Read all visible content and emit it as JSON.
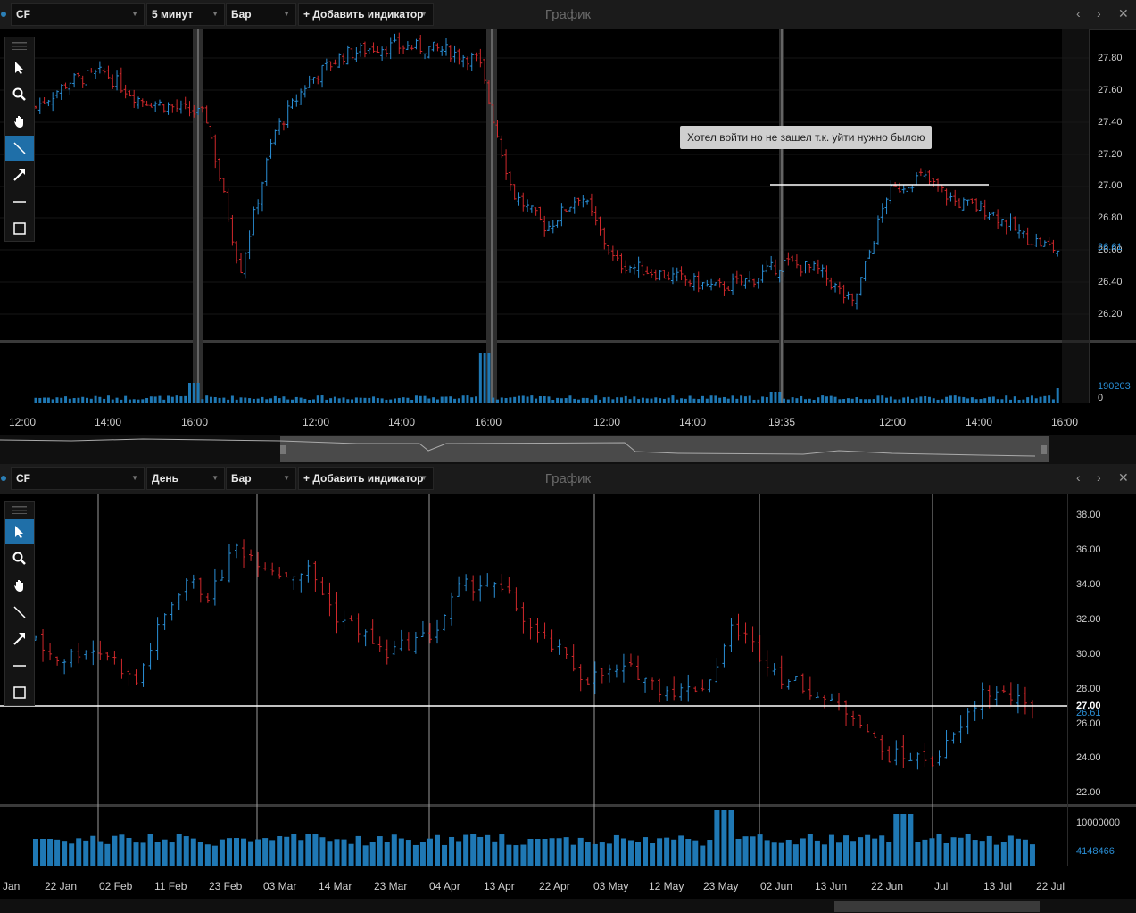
{
  "top": {
    "symbol": "CF",
    "interval": "5 минут",
    "chart_kind": "Бар",
    "add_indicator": "+ Добавить индикатор",
    "title": "График",
    "annotation": "Хотел войти но не зашел т.к. уйти нужно былою",
    "price_ticks": [
      "27.80",
      "27.60",
      "27.40",
      "27.20",
      "27.00",
      "26.80",
      "26.60",
      "26.40",
      "26.20"
    ],
    "last_price": "26.61",
    "volume_max": "190203",
    "volume_zero": "0",
    "time_ticks": [
      "12:00",
      "14:00",
      "16:00",
      "12:00",
      "14:00",
      "16:00",
      "12:00",
      "14:00",
      "19:35",
      "12:00",
      "14:00",
      "16:00"
    ]
  },
  "bottom": {
    "symbol": "CF",
    "interval": "День",
    "chart_kind": "Бар",
    "add_indicator": "+ Добавить индикатор",
    "title": "График",
    "price_ticks": [
      "38.00",
      "36.00",
      "34.00",
      "32.00",
      "30.00",
      "28.00",
      "26.00",
      "24.00",
      "22.00"
    ],
    "hline_price": "27.00",
    "last_price": "26.61",
    "volume_max": "10000000",
    "volume_last": "4148466",
    "date_ticks": [
      "Jan",
      "22 Jan",
      "02 Feb",
      "11 Feb",
      "23 Feb",
      "03 Mar",
      "14 Mar",
      "23 Mar",
      "04 Apr",
      "13 Apr",
      "22 Apr",
      "03 May",
      "12 May",
      "23 May",
      "02 Jun",
      "13 Jun",
      "22 Jun",
      "Jul",
      "13 Jul",
      "22 Jul"
    ]
  },
  "colors": {
    "up": "#2a8fd6",
    "down": "#d0282b",
    "volume": "#1f78b4"
  },
  "icons": [
    "menu-icon",
    "pointer-icon",
    "zoom-icon",
    "hand-icon",
    "line-tool-icon",
    "arrow-tool-icon",
    "horizontal-line-icon",
    "rectangle-icon"
  ],
  "chart_data": [
    {
      "type": "bar",
      "title": "",
      "symbol": "CF",
      "interval": "5 минут",
      "ylim": [
        26.1,
        27.9
      ],
      "series": [
        {
          "name": "CF",
          "values": [
            27.45,
            27.6,
            27.65,
            27.5,
            27.45,
            27.4,
            26.5,
            27.3,
            27.6,
            27.75,
            27.8,
            27.8,
            27.78,
            27.72,
            26.95,
            26.75,
            26.95,
            26.55,
            26.5,
            26.45,
            26.4,
            26.45,
            26.55,
            26.5,
            26.3,
            26.95,
            27.05,
            26.9,
            26.85,
            26.7,
            26.62
          ]
        }
      ],
      "horizontal_line": 27.0,
      "volume_max": 190203
    },
    {
      "type": "bar",
      "title": "",
      "symbol": "CF",
      "interval": "День",
      "ylim": [
        21.5,
        38.5
      ],
      "series": [
        {
          "name": "CF",
          "values": [
            30.5,
            29.5,
            30.2,
            29.8,
            28.2,
            31.5,
            34,
            33,
            35.8,
            35,
            34.2,
            34.5,
            32,
            31.2,
            29.8,
            30.5,
            31,
            33.5,
            33.8,
            33,
            31,
            30,
            28.5,
            28.8,
            29,
            28,
            27.8,
            28.3,
            31.5,
            30,
            28.5,
            28,
            27,
            26.5,
            24.3,
            24.2,
            24,
            25.5,
            27.8,
            27.6,
            26.6
          ]
        }
      ],
      "horizontal_line": 27.0,
      "volume_max": 10000000,
      "volume_last": 4148466
    }
  ]
}
